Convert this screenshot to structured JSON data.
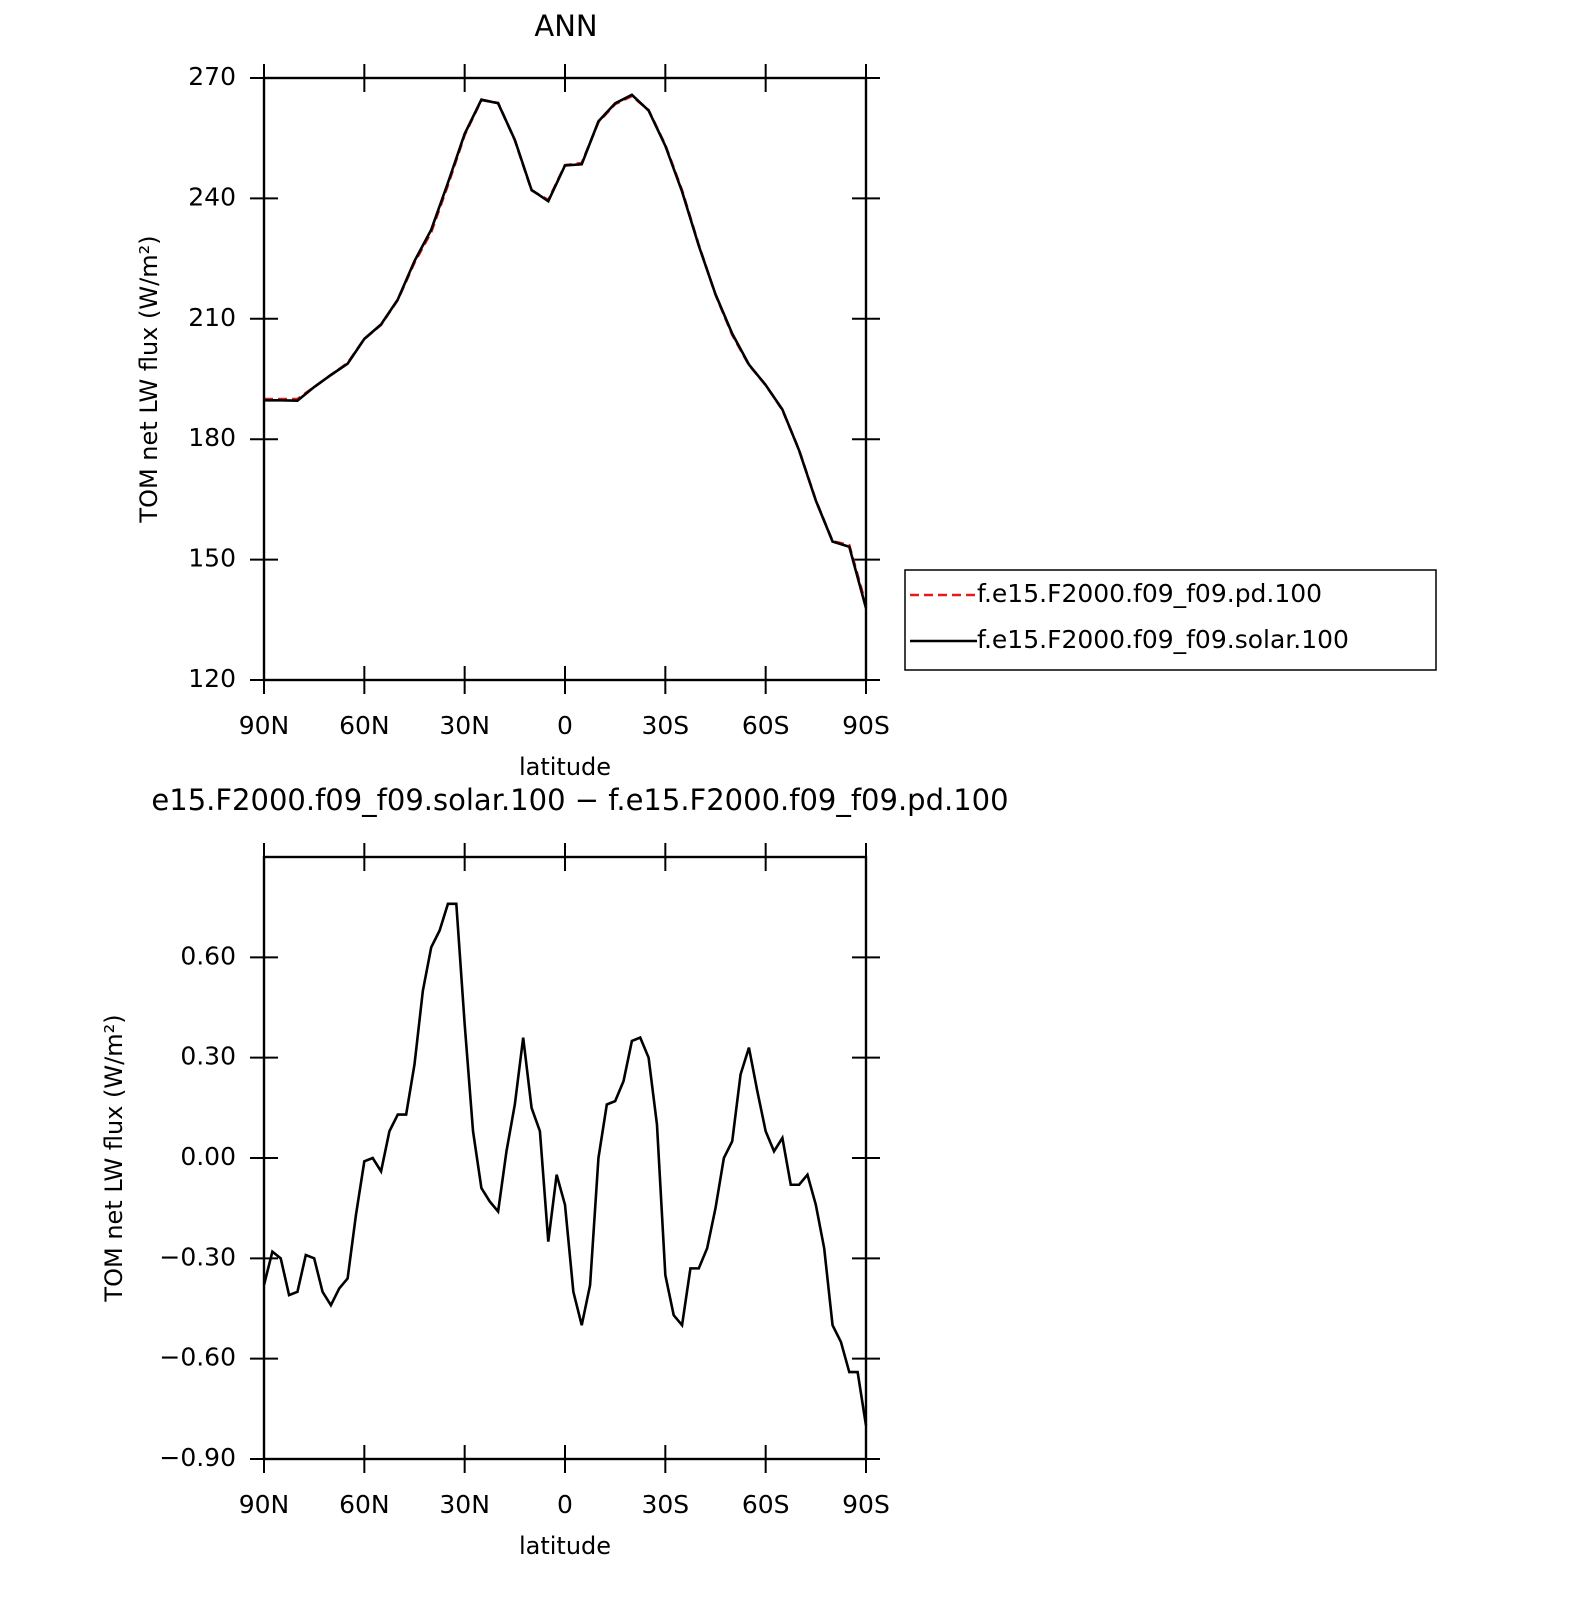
{
  "chart_data": [
    {
      "type": "line",
      "title": "ANN",
      "xlabel": "latitude",
      "ylabel": "TOM net LW flux (W/m²)",
      "x": [
        90,
        85,
        80,
        75,
        70,
        65,
        60,
        55,
        50,
        45,
        40,
        35,
        30,
        25,
        20,
        15,
        10,
        5,
        0,
        -5,
        -10,
        -15,
        -20,
        -25,
        -30,
        -35,
        -40,
        -45,
        -50,
        -55,
        -60,
        -65,
        -70,
        -75,
        -80,
        -85,
        -90
      ],
      "xlim": [
        90,
        -90
      ],
      "xticks": [
        {
          "value": 90,
          "label": "90N"
        },
        {
          "value": 60,
          "label": "60N"
        },
        {
          "value": 30,
          "label": "30N"
        },
        0,
        {
          "value": -30,
          "label": "30S"
        },
        {
          "value": -60,
          "label": "60S"
        },
        {
          "value": -90,
          "label": "90S"
        }
      ],
      "ylim": [
        120,
        270
      ],
      "yticks": [
        120,
        150,
        180,
        210,
        240,
        270
      ],
      "legend": "right",
      "series": [
        {
          "name": "f.e15.F2000.f09_f09.pd.100",
          "color": "#e41a1c",
          "line_style": "dashed",
          "values": [
            190,
            190,
            190,
            193,
            196,
            199,
            205,
            208.5,
            214.7,
            224,
            231.6,
            243.3,
            255.8,
            264.5,
            263.8,
            254.5,
            242,
            239.6,
            248.3,
            248.8,
            259,
            263.5,
            265.5,
            262,
            253.3,
            242,
            228.4,
            216,
            206,
            198.5,
            193.5,
            187.3,
            177.3,
            164.8,
            154.6,
            153.6,
            138.7
          ]
        },
        {
          "name": "f.e15.F2000.f09_f09.solar.100",
          "color": "#000000",
          "line_style": "solid",
          "values": [
            189.7,
            189.7,
            189.6,
            193,
            196,
            198.8,
            205,
            208.6,
            214.8,
            224.4,
            232.2,
            243.9,
            256.1,
            264.6,
            263.7,
            254.6,
            242.1,
            239.3,
            248.2,
            248.5,
            259.2,
            263.7,
            265.8,
            261.9,
            253.1,
            241.7,
            228.2,
            216.1,
            206.3,
            198.6,
            193.5,
            187.4,
            177.2,
            164.7,
            154.5,
            153.2,
            137.9
          ]
        }
      ]
    },
    {
      "type": "line",
      "title": "e15.F2000.f09_f09.solar.100 − f.e15.F2000.f09_f09.pd.100",
      "xlabel": "latitude",
      "ylabel": "TOM net LW flux (W/m²)",
      "x": [
        90,
        87.5,
        85,
        82.5,
        80,
        77.5,
        75,
        72.5,
        70,
        67.5,
        65,
        62.5,
        60,
        57.5,
        55,
        52.5,
        50,
        47.5,
        45,
        42.5,
        40,
        37.5,
        35,
        32.5,
        30,
        27.5,
        25,
        22.5,
        20,
        17.5,
        15,
        12.5,
        10,
        7.5,
        5,
        2.5,
        0,
        -2.5,
        -5,
        -7.5,
        -10,
        -12.5,
        -15,
        -17.5,
        -20,
        -22.5,
        -25,
        -27.5,
        -30,
        -32.5,
        -35,
        -37.5,
        -40,
        -42.5,
        -45,
        -47.5,
        -50,
        -52.5,
        -55,
        -57.5,
        -60,
        -62.5,
        -65,
        -67.5,
        -70,
        -72.5,
        -75,
        -77.5,
        -80,
        -82.5,
        -85,
        -87.5,
        -90
      ],
      "xlim": [
        90,
        -90
      ],
      "xticks": [
        {
          "value": 90,
          "label": "90N"
        },
        {
          "value": 60,
          "label": "60N"
        },
        {
          "value": 30,
          "label": "30N"
        },
        0,
        {
          "value": -30,
          "label": "30S"
        },
        {
          "value": -60,
          "label": "60S"
        },
        {
          "value": -90,
          "label": "90S"
        }
      ],
      "ylim": [
        -0.9,
        0.9
      ],
      "yticks": [
        {
          "value": -0.9,
          "label": "−0.90"
        },
        {
          "value": -0.6,
          "label": "−0.60"
        },
        {
          "value": -0.3,
          "label": "−0.30"
        },
        {
          "value": 0,
          "label": "0.00"
        },
        {
          "value": 0.3,
          "label": "0.30"
        },
        {
          "value": 0.6,
          "label": "0.60"
        }
      ],
      "series": [
        {
          "color": "#000000",
          "line_style": "solid",
          "values": [
            -0.38,
            -0.28,
            -0.3,
            -0.41,
            -0.4,
            -0.29,
            -0.3,
            -0.4,
            -0.44,
            -0.39,
            -0.36,
            -0.17,
            -0.01,
            0,
            -0.04,
            0.08,
            0.13,
            0.13,
            0.28,
            0.5,
            0.63,
            0.68,
            0.76,
            0.76,
            0.4,
            0.08,
            -0.09,
            -0.13,
            -0.16,
            0.02,
            0.16,
            0.36,
            0.15,
            0.08,
            -0.25,
            -0.05,
            -0.14,
            -0.4,
            -0.5,
            -0.38,
            0,
            0.16,
            0.17,
            0.23,
            0.35,
            0.36,
            0.3,
            0.1,
            -0.35,
            -0.47,
            -0.5,
            -0.33,
            -0.33,
            -0.27,
            -0.15,
            0,
            0.05,
            0.25,
            0.33,
            0.2,
            0.08,
            0.02,
            0.06,
            -0.08,
            -0.08,
            -0.05,
            -0.14,
            -0.27,
            -0.5,
            -0.55,
            -0.64,
            -0.64,
            -0.8
          ]
        }
      ]
    }
  ]
}
